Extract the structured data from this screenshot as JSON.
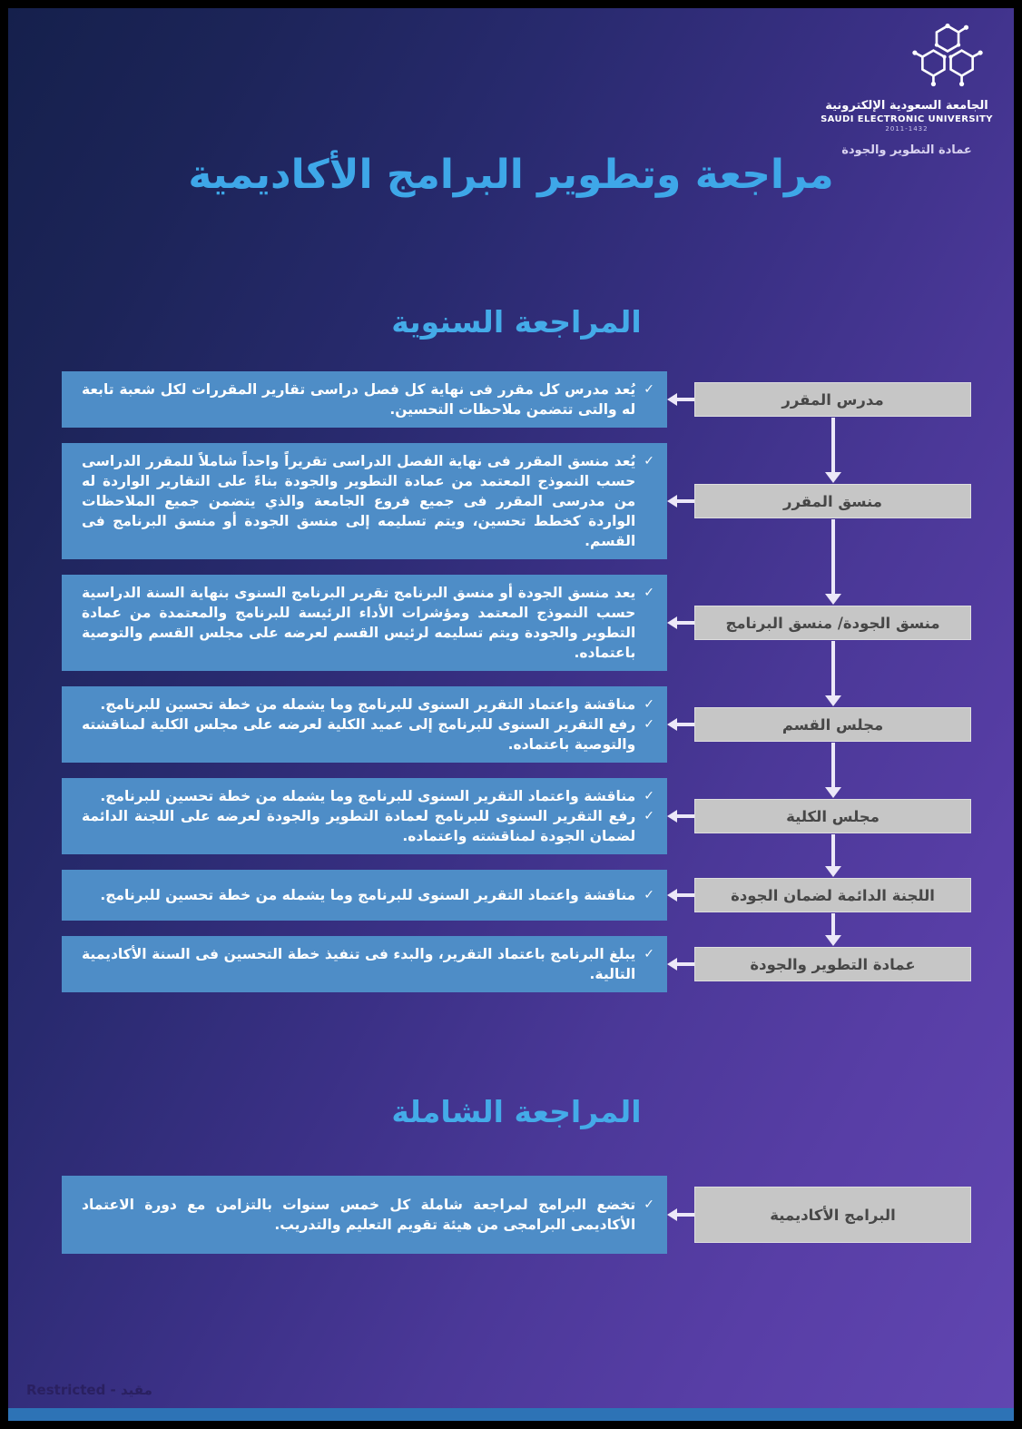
{
  "logo": {
    "name_ar": "الجامعة السعودية الإلكترونية",
    "name_en": "SAUDI ELECTRONIC UNIVERSITY",
    "years": "2011-1432",
    "unit": "عمادة التطوير والجودة"
  },
  "title": "مراجعة وتطوير البرامج الأكاديمية",
  "sections": [
    {
      "heading": "المراجعة السنوية",
      "steps": [
        {
          "role": "مدرس المقرر",
          "notes": [
            "يُعد مدرس كل مقرر فى نهاية كل فصل دراسى تقارير المقررات لكل شعبة تابعة له والتى تتضمن ملاحظات التحسين."
          ]
        },
        {
          "role": "منسق المقرر",
          "notes": [
            "يُعد منسق المقرر فى نهاية الفصل الدراسى تقريراً واحداً شاملاً للمقرر الدراسى حسب النموذج المعتمد من عمادة التطوير والجودة بناءً على التقارير الواردة له من مدرسى المقرر فى جميع فروع الجامعة والذي يتضمن جميع الملاحظات الواردة كخطط تحسين، ويتم تسليمه إلى منسق الجودة أو منسق البرنامج فى القسم."
          ]
        },
        {
          "role": "منسق الجودة/ منسق البرنامج",
          "notes": [
            "يعد منسق الجودة أو منسق البرنامج تقرير البرنامج السنوى بنهاية السنة الدراسية حسب النموذج المعتمد ومؤشرات الأداء الرئيسة للبرنامج والمعتمدة من عمادة التطوير والجودة ويتم تسليمه لرئيس القسم لعرضه على مجلس القسم والتوصية باعتماده."
          ]
        },
        {
          "role": "مجلس القسم",
          "notes": [
            "مناقشة واعتماد التقرير السنوى للبرنامج وما يشمله من خطة تحسين للبرنامج.",
            "رفع التقرير السنوى للبرنامج إلى عميد الكلية لعرضه على مجلس الكلية لمناقشته والتوصية باعتماده."
          ]
        },
        {
          "role": "مجلس الكلية",
          "notes": [
            "مناقشة واعتماد التقرير السنوى للبرنامج وما يشمله من خطة تحسين للبرنامج.",
            "رفع التقرير السنوى للبرنامج لعمادة التطوير والجودة لعرضه على اللجنة الدائمة لضمان الجودة لمناقشته واعتماده."
          ]
        },
        {
          "role": "اللجنة الدائمة لضمان الجودة",
          "notes": [
            "مناقشة واعتماد التقرير السنوى للبرنامج وما يشمله من خطة تحسين للبرنامج."
          ]
        },
        {
          "role": "عمادة التطوير والجودة",
          "notes": [
            "يبلغ البرنامج باعتماد التقرير، والبدء فى تنفيذ خطة التحسين فى السنة الأكاديمية التالية."
          ]
        }
      ]
    },
    {
      "heading": "المراجعة الشاملة",
      "steps": [
        {
          "role": "البرامج الأكاديمية",
          "notes": [
            "تخضع البرامج لمراجعة شاملة كل خمس سنوات بالتزامن مع دورة الاعتماد الأكاديمى البرامجى من هيئة تقويم التعليم والتدريب."
          ]
        }
      ]
    }
  ],
  "footer": "Restricted - مقيد",
  "icons": {
    "checkmark": "✓",
    "logo": "seu-hexagon-network-icon"
  },
  "colors": {
    "background_top": "#15204c",
    "background_bottom": "#6146b1",
    "accent_cyan": "#3ea7e8",
    "note_box_blue": "#4e8dc7",
    "role_box_gray": "#c6c6c6",
    "arrow_white": "#ece8f8",
    "bottom_bar_blue": "#2d73b6",
    "footer_text": "#2a2060"
  }
}
